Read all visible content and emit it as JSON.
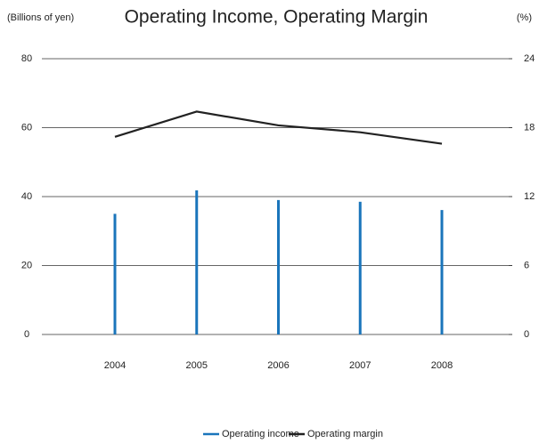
{
  "chart_data": {
    "type": "bar",
    "title": "Operating Income, Operating Margin",
    "y_label": "(Billions of yen)",
    "y2_label": "(%)",
    "categories": [
      "2004",
      "2005",
      "2006",
      "2007",
      "2008"
    ],
    "series": [
      {
        "name": "Operating income",
        "color": "#1a75bb",
        "type": "bar",
        "values": [
          35,
          41.8,
          39,
          38.5,
          36.1
        ]
      },
      {
        "name": "Operating margin",
        "color": "#222222",
        "type": "line",
        "axis": "y2",
        "values": [
          17.2,
          19.4,
          18.2,
          17.6,
          16.6
        ]
      }
    ],
    "ylim": [
      0,
      80
    ],
    "yticks": [
      0,
      20,
      40,
      60,
      80
    ],
    "y2lim": [
      0,
      24
    ],
    "y2ticks": [
      0,
      6,
      12,
      18,
      24
    ],
    "grid": true,
    "legend": "bottom"
  }
}
